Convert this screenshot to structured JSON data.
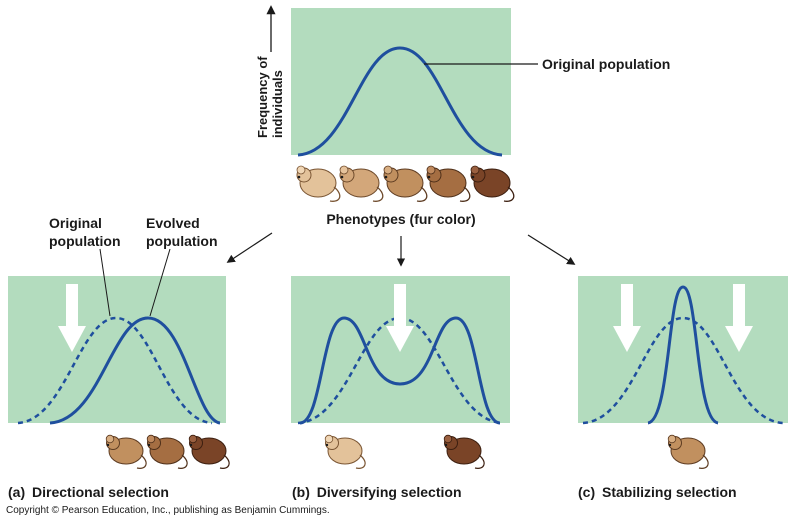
{
  "top": {
    "y_axis_label_line1": "Frequency of",
    "y_axis_label_line2": "individuals",
    "curve_label": "Original population",
    "x_axis_label": "Phenotypes (fur color)"
  },
  "panel_a": {
    "letter": "(a)",
    "title": "Directional selection",
    "original_label_line1": "Original",
    "original_label_line2": "population",
    "evolved_label_line1": "Evolved",
    "evolved_label_line2": "population"
  },
  "panel_b": {
    "letter": "(b)",
    "title": "Diversifying selection"
  },
  "panel_c": {
    "letter": "(c)",
    "title": "Stabilizing selection"
  },
  "copyright": "Copyright © Pearson Education, Inc., publishing as Benjamin Cummings.",
  "colors": {
    "panel_bg": "#b3dcbe",
    "curve": "#1f4f9e",
    "arrow_fill": "#ffffff",
    "mouse_light": "#d9b48a",
    "mouse_mid": "#b07a4e",
    "mouse_dark": "#6e3b22"
  }
}
